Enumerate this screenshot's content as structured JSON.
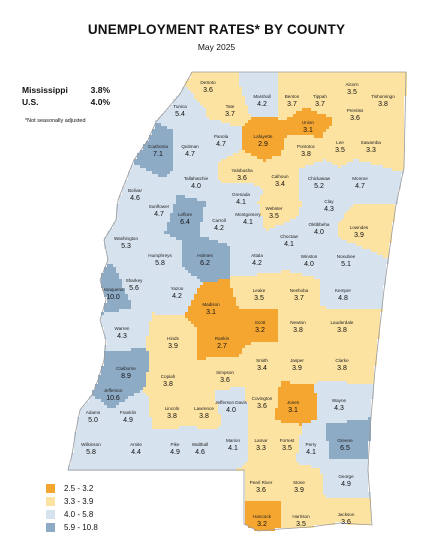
{
  "title": "UNEMPLOYMENT RATES* BY COUNTY",
  "subtitle": "May 2025",
  "state_stats": [
    {
      "label": "Mississippi",
      "value": "3.8%"
    },
    {
      "label": "U.S.",
      "value": "4.0%"
    }
  ],
  "note": "*Not seasonally adjusted",
  "legend": [
    {
      "label": "2.5 - 3.2",
      "color": "#f5a630"
    },
    {
      "label": "3.3 - 3.9",
      "color": "#fde3a1"
    },
    {
      "label": "4.0 - 5.8",
      "color": "#d6e2ee"
    },
    {
      "label": "5.9 - 10.8",
      "color": "#8eabc6"
    }
  ],
  "counties": [
    {
      "name": "DeSoto",
      "value": "3.6"
    },
    {
      "name": "Marshall",
      "value": "4.2"
    },
    {
      "name": "Benton",
      "value": "3.7"
    },
    {
      "name": "Tippah",
      "value": "3.7"
    },
    {
      "name": "Alcorn",
      "value": "3.5"
    },
    {
      "name": "Tishomingo",
      "value": "3.8"
    },
    {
      "name": "Tunica",
      "value": "5.4"
    },
    {
      "name": "Tate",
      "value": "3.7"
    },
    {
      "name": "Union",
      "value": "3.1"
    },
    {
      "name": "Prentiss",
      "value": "3.6"
    },
    {
      "name": "Panola",
      "value": "4.7"
    },
    {
      "name": "Lafayette",
      "value": "2.9"
    },
    {
      "name": "Coahoma",
      "value": "7.1"
    },
    {
      "name": "Quitman",
      "value": "4.7"
    },
    {
      "name": "Pontotoc",
      "value": "3.8"
    },
    {
      "name": "Lee",
      "value": "3.5"
    },
    {
      "name": "Itawamba",
      "value": "3.3"
    },
    {
      "name": "Yalobusha",
      "value": "3.6"
    },
    {
      "name": "Tallahatchie",
      "value": "4.0"
    },
    {
      "name": "Calhoun",
      "value": "3.4"
    },
    {
      "name": "Chickasaw",
      "value": "5.2"
    },
    {
      "name": "Monroe",
      "value": "4.7"
    },
    {
      "name": "Bolivar",
      "value": "4.6"
    },
    {
      "name": "Grenada",
      "value": "4.1"
    },
    {
      "name": "Clay",
      "value": "4.3"
    },
    {
      "name": "Sunflower",
      "value": "4.7"
    },
    {
      "name": "Webster",
      "value": "3.5"
    },
    {
      "name": "Leflore",
      "value": "6.4"
    },
    {
      "name": "Carroll",
      "value": "4.2"
    },
    {
      "name": "Montgomery",
      "value": "4.1"
    },
    {
      "name": "Oktibbeha",
      "value": "4.0"
    },
    {
      "name": "Lowndes",
      "value": "3.9"
    },
    {
      "name": "Choctaw",
      "value": "4.1"
    },
    {
      "name": "Washington",
      "value": "5.3"
    },
    {
      "name": "Humphreys",
      "value": "5.8"
    },
    {
      "name": "Holmes",
      "value": "6.2"
    },
    {
      "name": "Attala",
      "value": "4.2"
    },
    {
      "name": "Winston",
      "value": "4.0"
    },
    {
      "name": "Noxubee",
      "value": "5.1"
    },
    {
      "name": "Sharkey",
      "value": "5.6"
    },
    {
      "name": "Yazoo",
      "value": "4.2"
    },
    {
      "name": "Issaquena",
      "value": "10.0"
    },
    {
      "name": "Leake",
      "value": "3.5"
    },
    {
      "name": "Neshoba",
      "value": "3.7"
    },
    {
      "name": "Kemper",
      "value": "4.8"
    },
    {
      "name": "Madison",
      "value": "3.1"
    },
    {
      "name": "Warren",
      "value": "4.3"
    },
    {
      "name": "Scott",
      "value": "3.2"
    },
    {
      "name": "Newton",
      "value": "3.8"
    },
    {
      "name": "Lauderdale",
      "value": "3.8"
    },
    {
      "name": "Hinds",
      "value": "3.9"
    },
    {
      "name": "Rankin",
      "value": "2.7"
    },
    {
      "name": "Claiborne",
      "value": "8.9"
    },
    {
      "name": "Smith",
      "value": "3.4"
    },
    {
      "name": "Jasper",
      "value": "3.9"
    },
    {
      "name": "Clarke",
      "value": "3.8"
    },
    {
      "name": "Copiah",
      "value": "3.8"
    },
    {
      "name": "Simpson",
      "value": "3.6"
    },
    {
      "name": "Jefferson",
      "value": "10.6"
    },
    {
      "name": "Covington",
      "value": "3.6"
    },
    {
      "name": "Jones",
      "value": "3.1"
    },
    {
      "name": "Wayne",
      "value": "4.3"
    },
    {
      "name": "Lincoln",
      "value": "3.8"
    },
    {
      "name": "Lawrence",
      "value": "3.8"
    },
    {
      "name": "Jefferson Davis",
      "value": "4.0"
    },
    {
      "name": "Adams",
      "value": "5.0"
    },
    {
      "name": "Franklin",
      "value": "4.9"
    },
    {
      "name": "Wilkinson",
      "value": "5.8"
    },
    {
      "name": "Amite",
      "value": "4.4"
    },
    {
      "name": "Pike",
      "value": "4.9"
    },
    {
      "name": "Walthall",
      "value": "4.6"
    },
    {
      "name": "Marion",
      "value": "4.1"
    },
    {
      "name": "Lamar",
      "value": "3.3"
    },
    {
      "name": "Forrest",
      "value": "3.5"
    },
    {
      "name": "Perry",
      "value": "4.1"
    },
    {
      "name": "Greene",
      "value": "6.5"
    },
    {
      "name": "George",
      "value": "4.9"
    },
    {
      "name": "Pearl River",
      "value": "3.6"
    },
    {
      "name": "Stone",
      "value": "3.9"
    },
    {
      "name": "Hancock",
      "value": "3.2"
    },
    {
      "name": "Harrison",
      "value": "3.5"
    },
    {
      "name": "Jackson",
      "value": "3.6"
    }
  ]
}
